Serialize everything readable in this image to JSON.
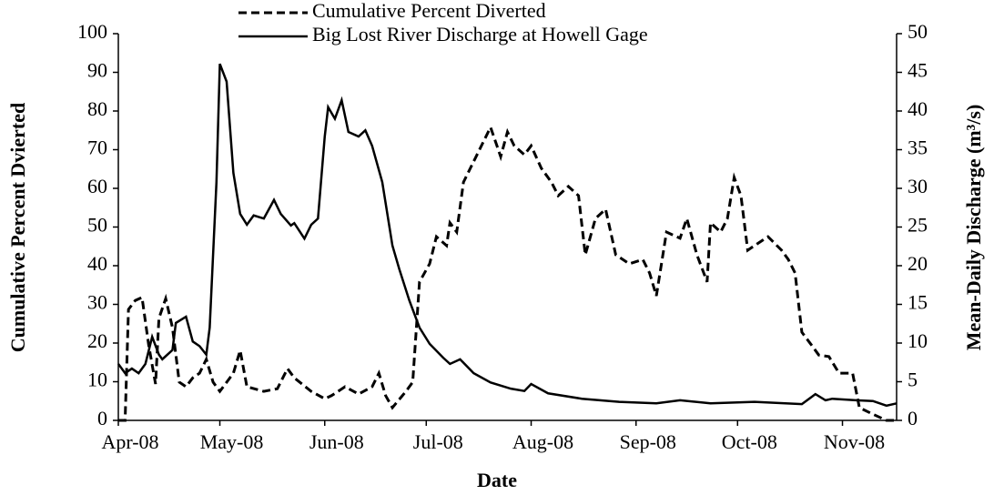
{
  "chart_data": {
    "type": "line",
    "x_label": "Date",
    "y_label": "Cumulative Percent Dvierted",
    "y2_label": "Mean-Daily Discharge (m³/s)",
    "xlim": [
      39539,
      39769
    ],
    "xticks": [
      {
        "value": 39539,
        "label": "Apr-08"
      },
      {
        "value": 39569,
        "label": "May-08"
      },
      {
        "value": 39600,
        "label": "Jun-08"
      },
      {
        "value": 39630,
        "label": "Jul-08"
      },
      {
        "value": 39661,
        "label": "Aug-08"
      },
      {
        "value": 39692,
        "label": "Sep-08"
      },
      {
        "value": 39722,
        "label": "Oct-08"
      },
      {
        "value": 39753,
        "label": "Nov-08"
      }
    ],
    "ylim": [
      0,
      100
    ],
    "yticks": [
      0,
      10,
      20,
      30,
      40,
      50,
      60,
      70,
      80,
      90,
      100
    ],
    "y2lim": [
      0,
      50
    ],
    "y2ticks": [
      0,
      5,
      10,
      15,
      20,
      25,
      30,
      35,
      40,
      45,
      50
    ],
    "series": [
      {
        "name": "Cumulative Percent Diverted",
        "color": "#000000",
        "dash": true,
        "x": [
          39539,
          39541,
          39542,
          39544,
          39546,
          39548,
          39550,
          39551,
          39553,
          39555,
          39557,
          39559,
          39561,
          39563,
          39565,
          39567,
          39569,
          39573,
          39575,
          39577,
          39582,
          39586,
          39589,
          39591,
          39596,
          39600,
          39602,
          39606,
          39610,
          39614,
          39616,
          39618,
          39620,
          39624,
          39626,
          39628,
          39631,
          39633,
          39636,
          39637,
          39639,
          39641,
          39645,
          39649,
          39652,
          39654,
          39656,
          39659,
          39661,
          39664,
          39667,
          39669,
          39672,
          39675,
          39677,
          39680,
          39683,
          39686,
          39690,
          39694,
          39696,
          39698,
          39701,
          39705,
          39707,
          39710,
          39713,
          39714,
          39717,
          39719,
          39721,
          39723,
          39725,
          39727,
          39731,
          39735,
          39737,
          39739,
          39741,
          39744,
          39746,
          39749,
          39752,
          39756,
          39758,
          39762,
          39766,
          39769
        ],
        "values": [
          0,
          0,
          28.7,
          31,
          31.8,
          19.3,
          9.4,
          26.4,
          31.5,
          24,
          9.9,
          8.7,
          11,
          12.2,
          15.8,
          9.9,
          7.5,
          12.2,
          18.1,
          8.7,
          7.5,
          8.2,
          13.4,
          11,
          7.5,
          5.6,
          6.4,
          8.7,
          6.8,
          8.7,
          12.2,
          6.4,
          3.3,
          7.5,
          9.9,
          35.8,
          40.5,
          47.5,
          45.2,
          51.1,
          48.7,
          61.6,
          68.7,
          75.8,
          68.2,
          74.6,
          71,
          68.7,
          71,
          65.2,
          61.6,
          58.1,
          60.5,
          58.1,
          42.8,
          52.2,
          54.6,
          42.8,
          40.5,
          41.6,
          38.1,
          32.2,
          48.7,
          47.1,
          52.2,
          42.8,
          35.8,
          51.1,
          48.7,
          52.2,
          62.8,
          58.1,
          44,
          45.2,
          47.5,
          44,
          41.6,
          38.1,
          22.8,
          19.3,
          16.9,
          16.5,
          12.2,
          12.2,
          3.3,
          1.6,
          0,
          0
        ]
      },
      {
        "name": "Big Lost River Discharge at Howell Gage",
        "color": "#000000",
        "dash": false,
        "axis": "y2",
        "x": [
          39539,
          39541,
          39543,
          39545,
          39547,
          39549,
          39551,
          39552,
          39555,
          39556,
          39559,
          39561,
          39563,
          39565,
          39566,
          39568,
          39569,
          39571,
          39573,
          39575,
          39577,
          39579,
          39582,
          39585,
          39587,
          39590,
          39591,
          39594,
          39596,
          39598,
          39600,
          39601,
          39603,
          39605,
          39607,
          39610,
          39612,
          39614,
          39617,
          39620,
          39622,
          39625,
          39628,
          39631,
          39635,
          39637,
          39640,
          39644,
          39649,
          39655,
          39659,
          39661,
          39666,
          39676,
          39687,
          39698,
          39705,
          39714,
          39727,
          39741,
          39745,
          39748,
          39750,
          39757,
          39762,
          39766,
          39769
        ],
        "values": [
          7.3,
          6.1,
          6.7,
          6.1,
          7.3,
          10.8,
          8.5,
          7.9,
          9.1,
          12.6,
          13.4,
          10.2,
          9.6,
          8.5,
          12,
          30.8,
          46.1,
          43.8,
          32,
          26.7,
          25.3,
          26.5,
          26.1,
          28.5,
          26.7,
          25.2,
          25.5,
          23.5,
          25.3,
          26.1,
          36.7,
          40.5,
          39,
          41.4,
          37.3,
          36.7,
          37.5,
          35.5,
          30.8,
          22.6,
          19.6,
          15.5,
          12,
          9.9,
          8.1,
          7.3,
          7.9,
          6.1,
          4.9,
          4.1,
          3.8,
          4.7,
          3.5,
          2.8,
          2.4,
          2.2,
          2.6,
          2.2,
          2.4,
          2.1,
          3.4,
          2.6,
          2.8,
          2.6,
          2.5,
          1.9,
          2.2
        ]
      }
    ]
  }
}
